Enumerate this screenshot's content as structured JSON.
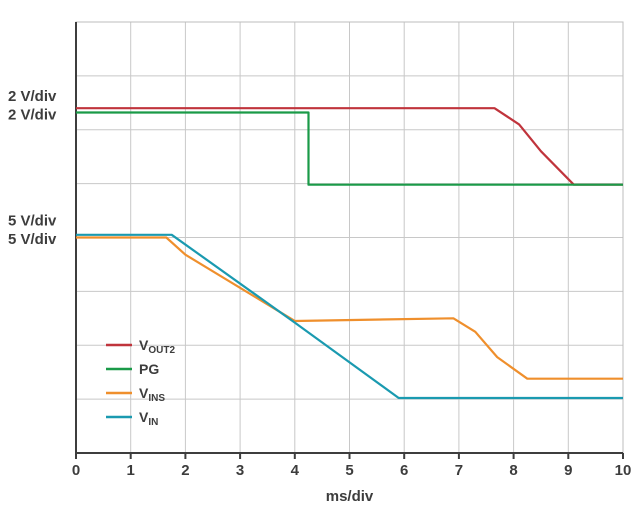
{
  "chart_data": {
    "type": "line",
    "xlabel": "ms/div",
    "xlim": [
      0,
      10
    ],
    "ylim": [
      0,
      8
    ],
    "x_ticks": [
      "0",
      "1",
      "2",
      "3",
      "4",
      "5",
      "6",
      "7",
      "8",
      "9",
      "10"
    ],
    "grid": true,
    "scale_labels": [
      {
        "text": "2 V/div",
        "y": 6.63
      },
      {
        "text": "2 V/div",
        "y": 6.28
      },
      {
        "text": "5 V/div",
        "y": 4.32
      },
      {
        "text": "5 V/div",
        "y": 3.97
      }
    ],
    "legend": {
      "placement": "lower-left",
      "entries": [
        {
          "main": "V",
          "sub": "OUT2",
          "color": "#c0343c"
        },
        {
          "main": "PG",
          "sub": "",
          "color": "#1a9a48"
        },
        {
          "main": "V",
          "sub": "INS",
          "color": "#ef8f2c"
        },
        {
          "main": "V",
          "sub": "IN",
          "color": "#1a9ab0"
        }
      ]
    },
    "series": [
      {
        "color": "#c0343c",
        "points": [
          [
            0,
            6.4
          ],
          [
            7.65,
            6.4
          ],
          [
            8.1,
            6.1
          ],
          [
            8.5,
            5.6
          ],
          [
            9.1,
            4.98
          ],
          [
            10,
            4.98
          ]
        ]
      },
      {
        "color": "#1a9a48",
        "points": [
          [
            0,
            6.32
          ],
          [
            4.25,
            6.32
          ],
          [
            4.25,
            4.98
          ],
          [
            10,
            4.98
          ]
        ]
      },
      {
        "color": "#ef8f2c",
        "points": [
          [
            0,
            4.0
          ],
          [
            1.65,
            4.0
          ],
          [
            2.0,
            3.68
          ],
          [
            4.0,
            2.45
          ],
          [
            6.9,
            2.5
          ],
          [
            7.3,
            2.25
          ],
          [
            7.7,
            1.78
          ],
          [
            8.25,
            1.38
          ],
          [
            10,
            1.38
          ]
        ]
      },
      {
        "color": "#1a9ab0",
        "points": [
          [
            0,
            4.05
          ],
          [
            1.75,
            4.05
          ],
          [
            4.0,
            2.42
          ],
          [
            5.9,
            1.02
          ],
          [
            10,
            1.02
          ]
        ]
      }
    ]
  }
}
